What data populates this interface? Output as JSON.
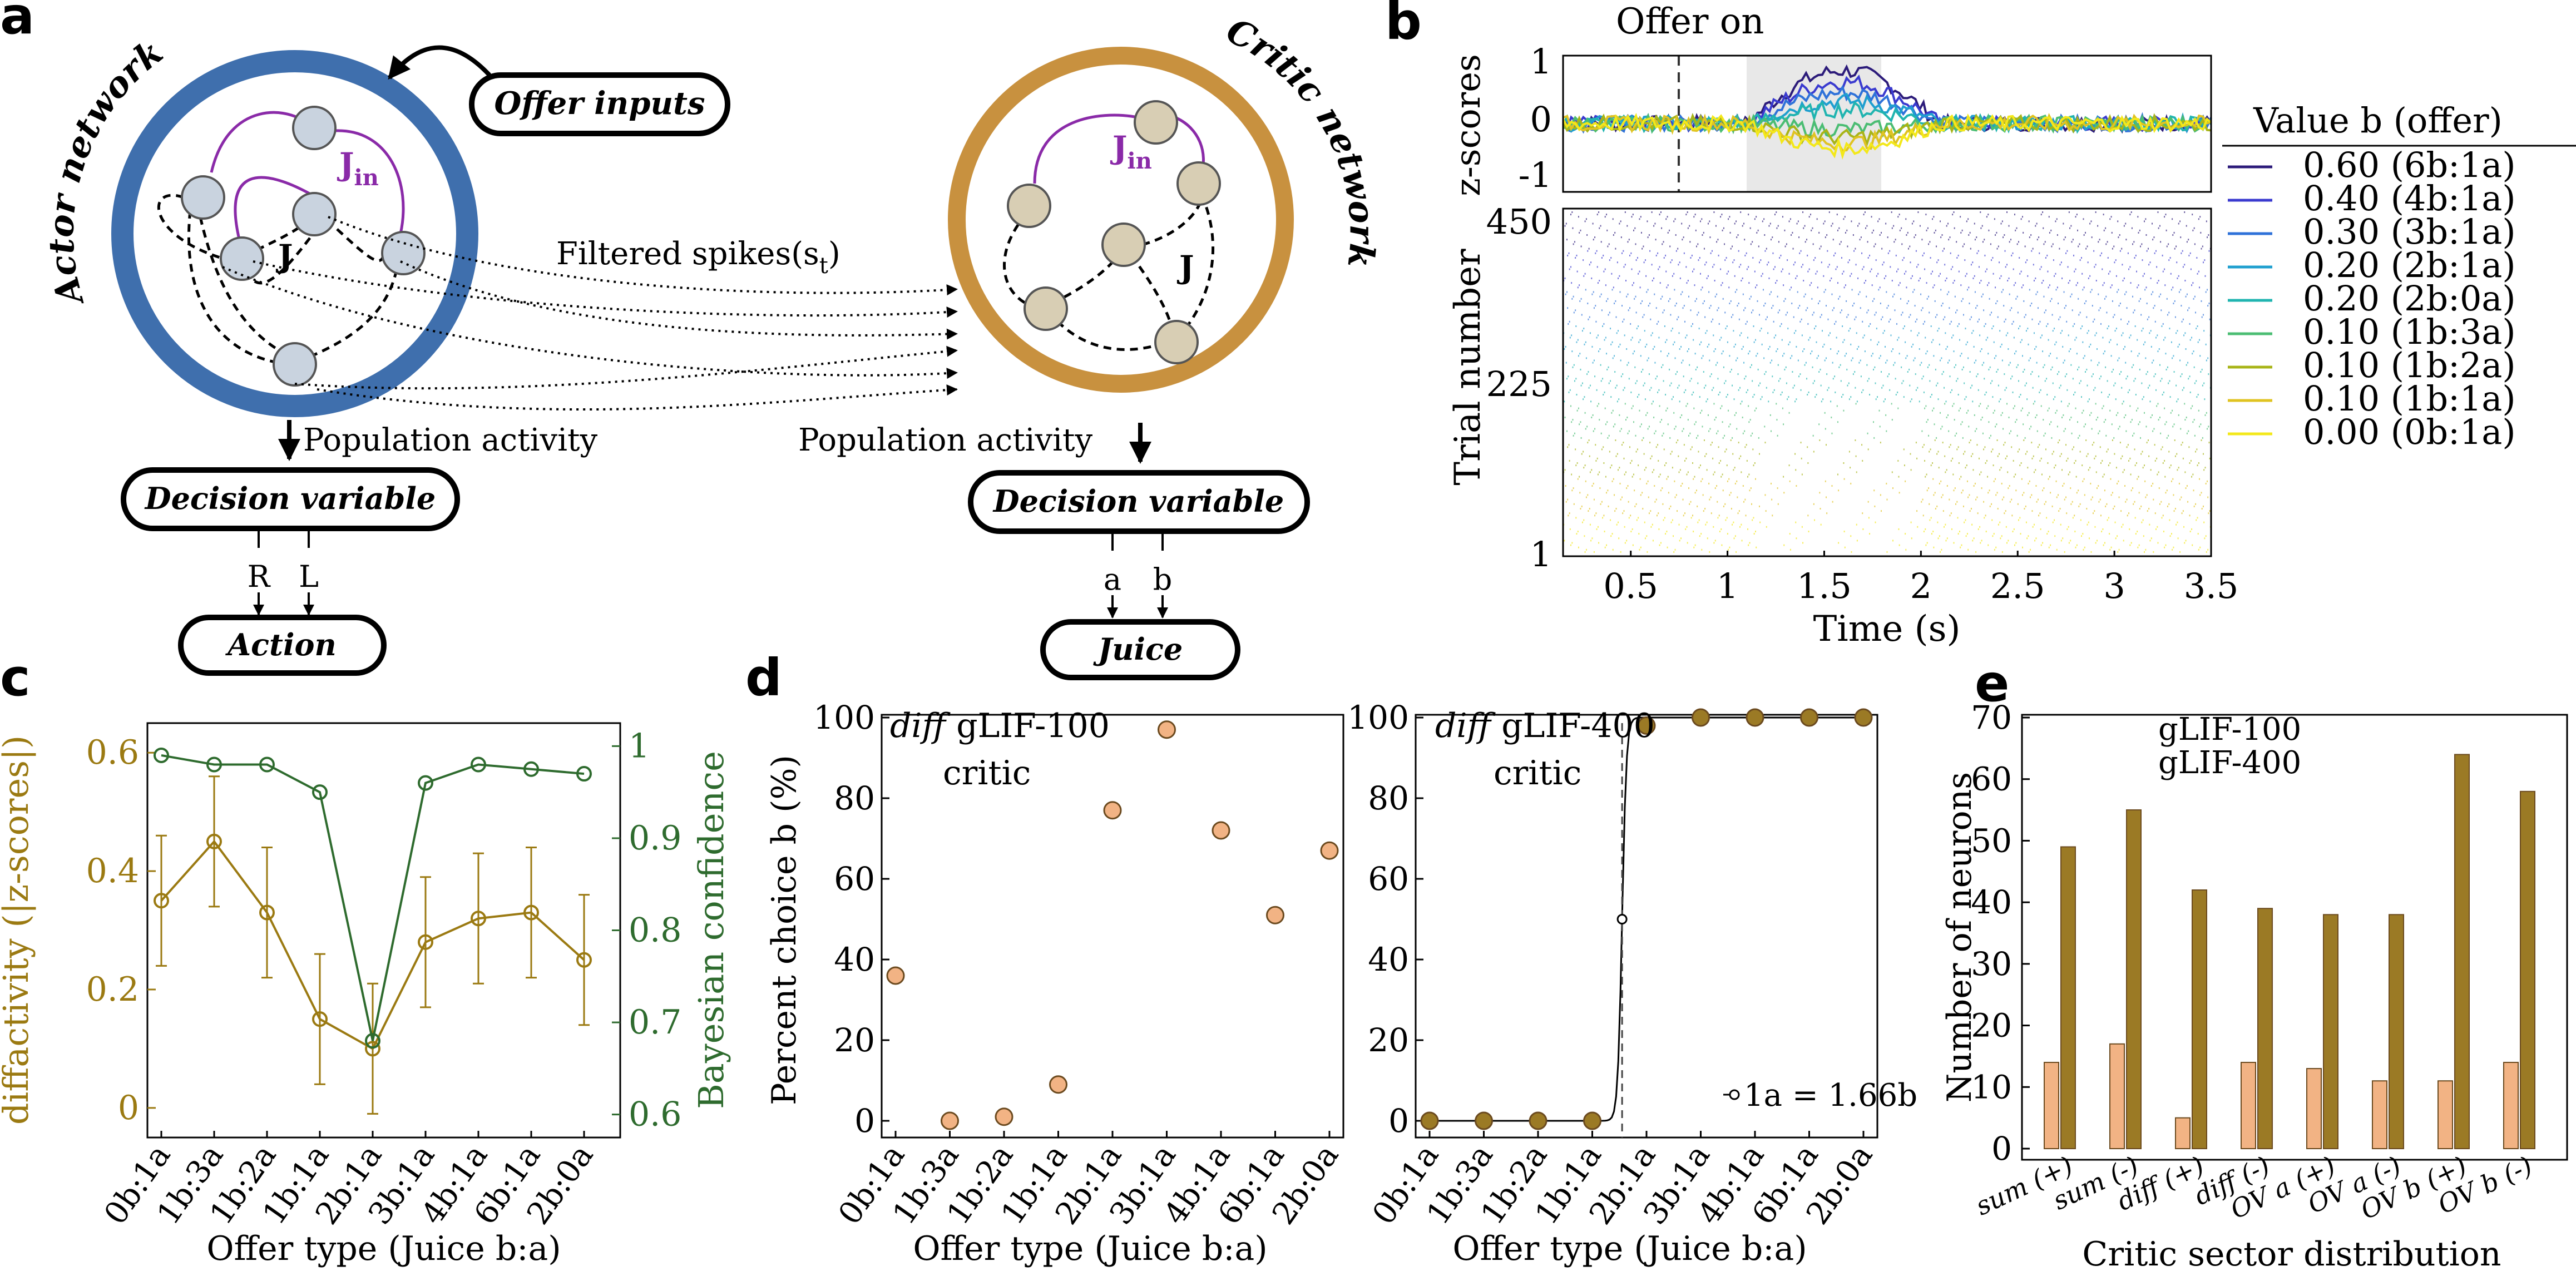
{
  "panel_letters": {
    "a": "a",
    "b": "b",
    "c": "c",
    "d": "d",
    "e": "e"
  },
  "panel_a": {
    "actor_title": "Actor network",
    "critic_title": "Critic network",
    "offer_inputs": "Offer inputs",
    "jin": "J",
    "jin_sub": "in",
    "j_label": "J",
    "filtered_spikes": "Filtered spikes(s",
    "filtered_sub": "t",
    "filtered_close": ")",
    "population_activity_left": "Population activity",
    "population_activity_right": "Population activity",
    "decision_variable_left": "Decision variable",
    "decision_variable_right": "Decision variable",
    "left_out_1": "R",
    "left_out_2": "L",
    "right_out_1": "a",
    "right_out_2": "b",
    "action": "Action",
    "juice": "Juice",
    "colors": {
      "actor": "#3f6fad",
      "critic": "#c8913f",
      "actor_node": "#c9d3df",
      "critic_node": "#d8ceb4",
      "jin": "#8a2aa8"
    }
  },
  "panel_b": {
    "offer_on": "Offer on",
    "zscores_label": "z-scores",
    "trial_label": "Trial number",
    "time_label": "Time (s)",
    "z_ticks": [
      "1",
      "0",
      "-1"
    ],
    "trial_ticks": [
      "450",
      "225",
      "1"
    ],
    "time_ticks": [
      "0.5",
      "1",
      "1.5",
      "2",
      "2.5",
      "3",
      "3.5"
    ],
    "legend_title": "Value b (offer)",
    "legend": [
      {
        "label": "0.60 (6b:1a)",
        "color": "#2c1b7a"
      },
      {
        "label": "0.40 (4b:1a)",
        "color": "#3a3acf"
      },
      {
        "label": "0.30 (3b:1a)",
        "color": "#2f72d9"
      },
      {
        "label": "0.20 (2b:1a)",
        "color": "#1f9fcf"
      },
      {
        "label": "0.20 (2b:0a)",
        "color": "#20b4b0"
      },
      {
        "label": "0.10 (1b:3a)",
        "color": "#4bbd73"
      },
      {
        "label": "0.10 (1b:2a)",
        "color": "#a8b418"
      },
      {
        "label": "0.10 (1b:1a)",
        "color": "#e0c322"
      },
      {
        "label": "0.00 (0b:1a)",
        "color": "#f3e81a"
      }
    ]
  },
  "chart_data": [
    {
      "type": "line",
      "panel": "c",
      "categories": [
        "0b:1a",
        "1b:3a",
        "1b:2a",
        "1b:1a",
        "2b:1a",
        "3b:1a",
        "4b:1a",
        "6b:1a",
        "2b:0a"
      ],
      "xlabel": "Offer type (Juice b:a)",
      "ylabel": "diffactivity (|z-scores|)",
      "ylabel_right": "Bayesian confidence",
      "ylim": [
        -0.05,
        0.65
      ],
      "ylim_right": [
        0.575,
        1.025
      ],
      "y_ticks": [
        "0",
        "0.2",
        "0.4",
        "0.6"
      ],
      "y_ticks_right": [
        "0.6",
        "0.7",
        "0.8",
        "0.9",
        "1"
      ],
      "series": [
        {
          "axis": "left",
          "color": "#9b7a12",
          "values": [
            0.35,
            0.45,
            0.33,
            0.15,
            0.1,
            0.28,
            0.32,
            0.33,
            0.25
          ],
          "error": [
            0.11,
            0.11,
            0.11,
            0.11,
            0.11,
            0.11,
            0.11,
            0.11,
            0.11
          ]
        },
        {
          "axis": "right",
          "color": "#2e6b2e",
          "values": [
            0.99,
            0.98,
            0.98,
            0.95,
            0.68,
            0.96,
            0.98,
            0.975,
            0.97
          ]
        }
      ]
    },
    {
      "type": "scatter",
      "panel": "d-left",
      "title_italic": "diff",
      "title": "gLIF-100",
      "title_line2": "critic",
      "categories": [
        "0b:1a",
        "1b:3a",
        "1b:2a",
        "1b:1a",
        "2b:1a",
        "3b:1a",
        "4b:1a",
        "6b:1a",
        "2b:0a"
      ],
      "xlabel": "Offer type (Juice b:a)",
      "ylabel": "Percent choice b (%)",
      "ylim": [
        -2,
        102
      ],
      "y_ticks": [
        "0",
        "20",
        "40",
        "60",
        "80",
        "100"
      ],
      "values": [
        36,
        0,
        1,
        9,
        77,
        97,
        72,
        51,
        67
      ],
      "color": "#f2b384"
    },
    {
      "type": "scatter",
      "panel": "d-right",
      "title_italic": "diff",
      "title": "gLIF-400",
      "title_line2": "critic",
      "categories": [
        "0b:1a",
        "1b:3a",
        "1b:2a",
        "1b:1a",
        "2b:1a",
        "3b:1a",
        "4b:1a",
        "6b:1a",
        "2b:0a"
      ],
      "xlabel": "Offer type (Juice b:a)",
      "ylim": [
        -2,
        102
      ],
      "y_ticks": [
        "0",
        "20",
        "40",
        "60",
        "80",
        "100"
      ],
      "values": [
        0,
        0,
        0,
        0,
        98,
        100,
        100,
        100,
        100
      ],
      "indifference_label": "1a = 1.66b",
      "color": "#9b7a25"
    },
    {
      "type": "bar",
      "panel": "e",
      "categories": [
        "sum (+)",
        "sum (-)",
        "diff (+)",
        "diff (-)",
        "OV a (+)",
        "OV a (-)",
        "OV b (+)",
        "OV b (-)"
      ],
      "xlabel": "Critic sector distribution",
      "ylabel": "Number of neurons",
      "ylim": [
        0,
        70
      ],
      "y_ticks": [
        "0",
        "10",
        "20",
        "30",
        "40",
        "50",
        "60",
        "70"
      ],
      "y_tick_values": [
        0,
        10,
        20,
        30,
        40,
        50,
        60,
        70
      ],
      "series": [
        {
          "name": "gLIF-100",
          "color": "#f2b384",
          "values": [
            14,
            17,
            5,
            14,
            13,
            11,
            11,
            14
          ]
        },
        {
          "name": "gLIF-400",
          "color": "#9b7a25",
          "values": [
            49,
            55,
            42,
            39,
            38,
            38,
            64,
            58
          ]
        }
      ]
    }
  ]
}
